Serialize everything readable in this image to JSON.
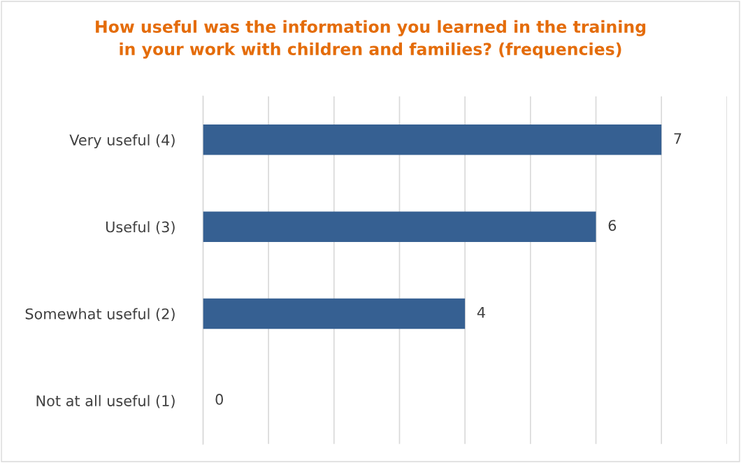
{
  "chart_data": {
    "type": "bar",
    "orientation": "horizontal",
    "title": "How useful was the information you learned in the training\nin your work with children and families? (frequencies)",
    "categories": [
      "Very useful (4)",
      "Useful (3)",
      "Somewhat useful (2)",
      "Not at all useful (1)"
    ],
    "values": [
      7,
      6,
      4,
      0
    ],
    "color": "#366092",
    "xlim": [
      0,
      8
    ],
    "xticks": [
      {
        "value": 0,
        "label": null
      },
      {
        "value": 1,
        "label": null
      },
      {
        "value": 2,
        "label": null
      },
      {
        "value": 3,
        "label": null
      },
      {
        "value": 4,
        "label": null
      },
      {
        "value": 5,
        "label": null
      },
      {
        "value": 6,
        "label": null
      },
      {
        "value": 7,
        "label": null
      },
      {
        "value": 8,
        "label": null
      }
    ],
    "tick_labels": "y",
    "grid": "x",
    "data_labels": true,
    "legend": false
  }
}
